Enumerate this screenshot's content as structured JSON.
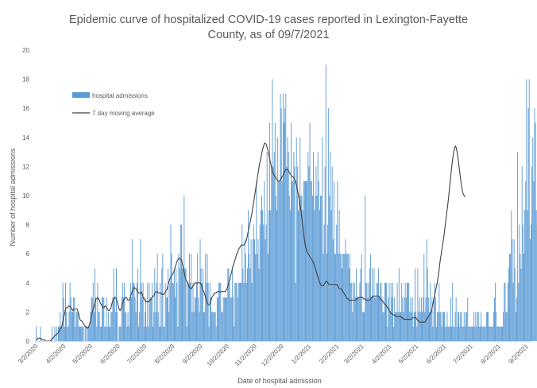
{
  "chart_title_line1": "Epidemic curve of hospitalized COVID-19 cases reported in Lexington-Fayette",
  "chart_title_line2": "County, as of 09/7/2021",
  "chart_data": {
    "type": "bar",
    "title": "Epidemic curve of hospitalized COVID-19 cases reported in Lexington-Fayette County, as of 09/7/2021",
    "xlabel": "Date of hospital admission",
    "ylabel": "Number of hospital admissions",
    "ylim": [
      0,
      20
    ],
    "yticks": [
      0,
      2,
      4,
      6,
      8,
      10,
      12,
      14,
      16,
      18,
      20
    ],
    "xticks": [
      "3/2/2020",
      "4/2/2020",
      "5/2/2020",
      "6/2/2020",
      "7/2/2020",
      "8/2/2020",
      "9/2/2020",
      "10/2/2020",
      "11/2/2020",
      "12/2/2020",
      "1/2/2021",
      "2/2/2021",
      "3/2/2021",
      "4/2/2021",
      "5/2/2021",
      "6/2/2021",
      "7/2/2021",
      "8/2/2021",
      "9/2/2021"
    ],
    "x_start": "3/2/2020",
    "x_end": "9/7/2021",
    "grid": false,
    "legend_position": "top-left",
    "series": [
      {
        "name": "hospital admissions",
        "kind": "bar",
        "color": "#5B9BD5",
        "values": [
          1,
          0,
          0,
          0,
          0,
          1,
          0,
          0,
          0,
          0,
          0,
          0,
          0,
          0,
          0,
          0,
          0,
          0,
          1,
          0,
          0,
          1,
          0,
          1,
          0,
          1,
          1,
          2,
          1,
          1,
          4,
          3,
          1,
          4,
          2,
          1,
          1,
          2,
          4,
          3,
          2,
          2,
          3,
          3,
          1,
          2,
          2,
          2,
          1,
          1,
          1,
          1,
          1,
          1,
          0,
          1,
          1,
          0,
          1,
          1,
          1,
          2,
          3,
          3,
          4,
          2,
          5,
          3,
          1,
          4,
          2,
          2,
          1,
          1,
          3,
          3,
          3,
          1,
          1,
          3,
          1,
          2,
          1,
          1,
          2,
          2,
          3,
          5,
          3,
          2,
          5,
          2,
          0,
          1,
          1,
          1,
          3,
          4,
          3,
          4,
          2,
          2,
          1,
          2,
          1,
          3,
          4,
          3,
          7,
          4,
          4,
          3,
          2,
          4,
          5,
          1,
          2,
          7,
          4,
          3,
          4,
          1,
          2,
          3,
          1,
          4,
          1,
          4,
          3,
          3,
          4,
          1,
          2,
          5,
          2,
          4,
          6,
          2,
          1,
          4,
          1,
          5,
          6,
          1,
          1,
          4,
          3,
          3,
          5,
          2,
          4,
          8,
          6,
          4,
          4,
          5,
          3,
          5,
          4,
          1,
          6,
          5,
          8,
          8,
          5,
          5,
          10,
          5,
          5,
          1,
          4,
          4,
          6,
          4,
          6,
          2,
          4,
          2,
          3,
          3,
          4,
          6,
          3,
          2,
          7,
          5,
          4,
          5,
          2,
          2,
          6,
          4,
          6,
          4,
          1,
          4,
          3,
          2,
          2,
          2,
          2,
          2,
          1,
          3,
          3,
          4,
          4,
          4,
          2,
          2,
          3,
          3,
          3,
          3,
          3,
          5,
          5,
          4,
          3,
          3,
          5,
          3,
          1,
          4,
          4,
          4,
          3,
          4,
          4,
          4,
          4,
          8,
          5,
          4,
          7,
          6,
          4,
          5,
          9,
          6,
          5,
          7,
          4,
          7,
          8,
          7,
          6,
          11,
          6,
          7,
          5,
          8,
          9,
          10,
          9,
          8,
          11,
          7,
          8,
          13,
          6,
          9,
          15,
          9,
          12,
          18,
          12,
          13,
          15,
          10,
          9,
          14,
          11,
          11,
          17,
          16,
          11,
          17,
          15,
          16,
          17,
          12,
          14,
          13,
          10,
          9,
          15,
          11,
          11,
          13,
          12,
          4,
          14,
          12,
          9,
          10,
          14,
          10,
          10,
          9,
          11,
          11,
          11,
          11,
          11,
          13,
          12,
          15,
          11,
          11,
          10,
          13,
          9,
          10,
          12,
          10,
          13,
          11,
          9,
          10,
          10,
          14,
          6,
          8,
          12,
          19,
          6,
          8,
          16,
          10,
          13,
          9,
          12,
          7,
          11,
          6,
          6,
          8,
          11,
          6,
          9,
          6,
          6,
          5,
          6,
          6,
          6,
          7,
          6,
          6,
          6,
          5,
          6,
          4,
          4,
          2,
          4,
          4,
          3,
          5,
          3,
          3,
          3,
          4,
          5,
          6,
          2,
          2,
          2,
          10,
          4,
          4,
          3,
          4,
          5,
          6,
          3,
          5,
          3,
          5,
          3,
          3,
          4,
          4,
          5,
          3,
          4,
          4,
          3,
          2,
          2,
          4,
          4,
          4,
          1,
          3,
          4,
          2,
          4,
          3,
          4,
          1,
          3,
          2,
          2,
          4,
          2,
          5,
          2,
          2,
          4,
          3,
          2,
          3,
          4,
          3,
          4,
          4,
          4,
          2,
          3,
          2,
          3,
          1,
          2,
          5,
          2,
          1,
          5,
          2,
          3,
          2,
          3,
          2,
          3,
          6,
          2,
          3,
          7,
          5,
          3,
          2,
          4,
          2,
          3,
          1,
          3,
          4,
          3,
          1,
          2,
          2,
          4,
          2,
          2,
          1,
          2,
          2,
          2,
          1,
          1,
          2,
          1,
          1,
          1,
          3,
          1,
          4,
          1,
          1,
          2,
          3,
          1,
          2,
          2,
          1,
          2,
          2,
          1,
          1,
          2,
          1,
          2,
          2,
          3,
          1,
          1,
          1,
          1,
          1,
          1,
          2,
          1,
          2,
          1,
          2,
          2,
          1,
          1,
          2,
          1,
          1,
          1,
          1,
          1,
          2,
          2,
          2,
          1,
          1,
          1,
          1,
          1,
          2,
          3,
          4,
          2,
          1,
          1,
          1,
          1,
          1,
          1,
          1,
          2,
          4,
          4,
          2,
          2,
          4,
          5,
          6,
          6,
          9,
          7,
          4,
          7,
          5,
          2,
          3,
          13,
          4,
          8,
          6,
          5,
          12,
          8,
          6,
          9,
          11,
          18,
          9,
          16,
          18,
          7,
          8,
          12,
          14,
          11,
          16,
          15,
          9,
          8,
          13,
          11,
          8,
          12,
          10,
          4
        ]
      },
      {
        "name": "7 day moving average",
        "kind": "line",
        "color": "#404040",
        "values": [
          0.1,
          0.1,
          0.2,
          0.2,
          0.2,
          0.2,
          0.1,
          0.1,
          0.1,
          0.1,
          0.0,
          0.0,
          0.0,
          0.0,
          0.0,
          0.0,
          0.0,
          0.1,
          0.2,
          0.2,
          0.3,
          0.4,
          0.4,
          0.5,
          0.5,
          0.6,
          0.7,
          0.9,
          0.9,
          1.1,
          1.4,
          1.7,
          1.9,
          2.2,
          2.3,
          2.3,
          2.4,
          2.4,
          2.4,
          2.3,
          2.2,
          2.1,
          2.2,
          2.2,
          2.2,
          2.2,
          2.2,
          2.0,
          1.8,
          1.5,
          1.4,
          1.4,
          1.3,
          1.2,
          1.1,
          1.0,
          1.0,
          0.9,
          0.9,
          1.0,
          1.2,
          1.4,
          1.7,
          2.0,
          2.2,
          2.4,
          2.7,
          2.9,
          2.9,
          3.0,
          2.9,
          2.8,
          2.6,
          2.5,
          2.4,
          2.3,
          2.3,
          2.4,
          2.4,
          2.3,
          2.2,
          2.1,
          2.1,
          2.2,
          2.3,
          2.6,
          2.8,
          2.9,
          3.0,
          3.0,
          2.9,
          2.7,
          2.4,
          2.2,
          2.1,
          2.2,
          2.4,
          2.6,
          2.8,
          2.9,
          3.0,
          3.0,
          2.9,
          2.8,
          2.8,
          2.9,
          3.1,
          3.3,
          3.5,
          3.6,
          3.7,
          3.6,
          3.6,
          3.5,
          3.4,
          3.3,
          3.3,
          3.3,
          3.4,
          3.2,
          3.0,
          2.9,
          2.8,
          2.7,
          2.7,
          2.7,
          2.7,
          2.8,
          2.8,
          2.9,
          3.0,
          3.1,
          3.1,
          3.3,
          3.4,
          3.4,
          3.4,
          3.3,
          3.3,
          3.3,
          3.3,
          3.2,
          3.2,
          3.2,
          3.3,
          3.4,
          3.5,
          3.6,
          3.9,
          4.1,
          4.3,
          4.4,
          4.5,
          4.6,
          4.7,
          4.9,
          5.1,
          5.3,
          5.5,
          5.6,
          5.7,
          5.7,
          5.6,
          5.6,
          5.3,
          5.0,
          4.7,
          4.4,
          4.2,
          4.1,
          4.0,
          3.8,
          3.7,
          3.6,
          3.6,
          3.7,
          3.8,
          3.9,
          4.0,
          4.0,
          4.0,
          4.0,
          4.0,
          4.0,
          4.0,
          3.9,
          3.7,
          3.5,
          3.4,
          3.2,
          3.0,
          2.8,
          2.6,
          2.5,
          2.5,
          2.6,
          2.8,
          3.0,
          3.1,
          3.2,
          3.3,
          3.3,
          3.3,
          3.4,
          3.4,
          3.4,
          3.4,
          3.4,
          3.4,
          3.4,
          3.4,
          3.4,
          3.4,
          3.5,
          3.6,
          3.8,
          4.0,
          4.2,
          4.5,
          4.7,
          5.0,
          5.2,
          5.4,
          5.6,
          5.8,
          6.0,
          6.1,
          6.3,
          6.4,
          6.5,
          6.6,
          6.6,
          6.6,
          6.6,
          6.7,
          6.8,
          7.0,
          7.3,
          7.6,
          7.9,
          8.2,
          8.5,
          8.8,
          9.2,
          9.6,
          10.0,
          10.4,
          10.8,
          11.2,
          11.6,
          12.0,
          12.3,
          12.6,
          12.9,
          13.2,
          13.4,
          13.6,
          13.6,
          13.5,
          13.3,
          13.1,
          12.8,
          12.5,
          12.2,
          11.9,
          11.6,
          11.5,
          11.4,
          11.3,
          11.2,
          11.1,
          11.0,
          11.0,
          11.0,
          11.1,
          11.2,
          11.3,
          11.4,
          11.6,
          11.7,
          11.8,
          11.8,
          11.8,
          11.7,
          11.6,
          11.5,
          11.4,
          11.3,
          11.3,
          11.2,
          11.1,
          10.9,
          10.7,
          10.4,
          10.1,
          9.7,
          9.3,
          8.9,
          8.4,
          7.9,
          7.4,
          6.9,
          6.5,
          6.3,
          6.1,
          6.0,
          5.9,
          5.8,
          5.7,
          5.6,
          5.5,
          5.4,
          5.2,
          5.0,
          4.8,
          4.6,
          4.4,
          4.2,
          4.0,
          3.9,
          3.8,
          3.8,
          3.8,
          3.9,
          4.0,
          4.1,
          4.1,
          4.0,
          3.9,
          3.9,
          3.9,
          3.9,
          3.9,
          3.9,
          3.9,
          3.9,
          3.9,
          3.9,
          3.8,
          3.7,
          3.6,
          3.6,
          3.6,
          3.5,
          3.4,
          3.3,
          3.2,
          3.1,
          3.0,
          2.9,
          2.9,
          2.8,
          2.8,
          2.8,
          2.8,
          2.8,
          2.8,
          2.8,
          2.8,
          2.9,
          2.9,
          3.0,
          3.0,
          3.0,
          3.0,
          3.0,
          3.0,
          2.9,
          2.9,
          2.9,
          2.8,
          2.8,
          2.8,
          2.8,
          2.8,
          2.9,
          3.0,
          3.0,
          3.1,
          3.1,
          3.1,
          3.1,
          3.1,
          3.1,
          3.1,
          3.0,
          2.9,
          2.8,
          2.8,
          2.7,
          2.6,
          2.5,
          2.5,
          2.4,
          2.3,
          2.2,
          2.1,
          2.0,
          1.9,
          1.9,
          1.8,
          1.8,
          1.8,
          1.7,
          1.7,
          1.7,
          1.7,
          1.7,
          1.7,
          1.7,
          1.6,
          1.6,
          1.5,
          1.5,
          1.5,
          1.5,
          1.5,
          1.5,
          1.5,
          1.5,
          1.5,
          1.5,
          1.6,
          1.6,
          1.6,
          1.6,
          1.6,
          1.5,
          1.4,
          1.4,
          1.3,
          1.3,
          1.3,
          1.3,
          1.3,
          1.3,
          1.3,
          1.4,
          1.5,
          1.6,
          1.7,
          1.8,
          1.9,
          2.0,
          2.3,
          2.6,
          2.9,
          3.2,
          3.5,
          3.8,
          4.1,
          4.5,
          5.0,
          5.5,
          5.9,
          6.3,
          6.7,
          7.1,
          7.6,
          8.1,
          8.6,
          9.1,
          9.6,
          10.2,
          10.8,
          11.4,
          12.0,
          12.5,
          12.9,
          13.2,
          13.4,
          13.3,
          13.0,
          12.6,
          12.1,
          11.6,
          11.1,
          10.7,
          10.3,
          10.1,
          10.0,
          9.9
        ]
      }
    ]
  }
}
